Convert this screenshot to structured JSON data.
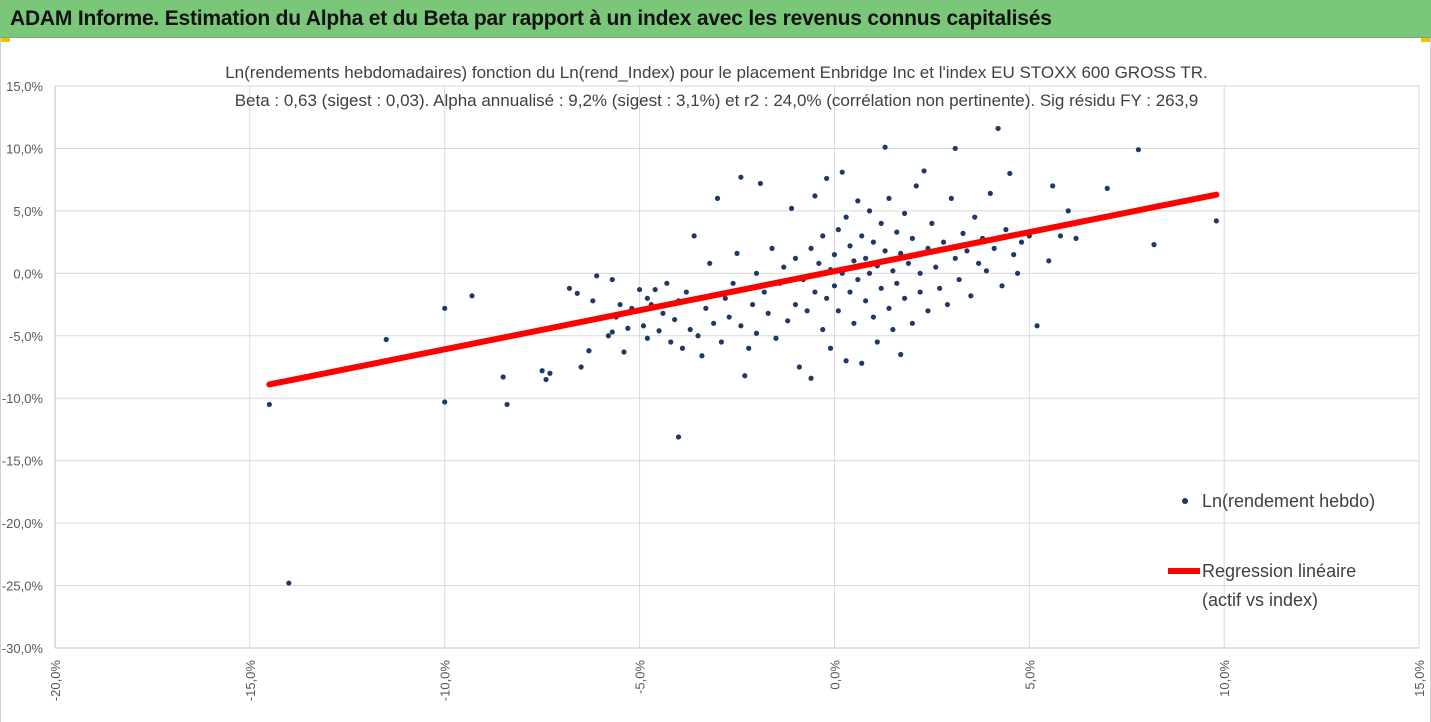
{
  "banner": {
    "title": "ADAM Informe. Estimation du Alpha et du Beta par rapport à un index avec les revenus connus capitalisés",
    "color": "#7ac77a"
  },
  "chart_data": {
    "type": "scatter",
    "title_line1": "Ln(rendements hebdomadaires) fonction du Ln(rend_Index) pour le placement Enbridge Inc et l'index EU STOXX 600 GROSS TR.",
    "title_line2": "Beta : 0,63 (sigest : 0,03). Alpha annualisé : 9,2% (sigest : 3,1%) et r2 : 24,0% (corrélation non pertinente). Sig résidu FY : 263,9",
    "xlim": [
      -0.2,
      0.15
    ],
    "ylim": [
      -0.3,
      0.15
    ],
    "x_ticks": [
      -0.2,
      -0.15,
      -0.1,
      -0.05,
      0.0,
      0.05,
      0.1,
      0.15
    ],
    "x_tick_labels": [
      "-20,0%",
      "-15,0%",
      "-10,0%",
      "-5,0%",
      "0,0%",
      "5,0%",
      "10,0%",
      "15,0%"
    ],
    "y_ticks": [
      0.15,
      0.1,
      0.05,
      0.0,
      -0.05,
      -0.1,
      -0.15,
      -0.2,
      -0.25,
      -0.3
    ],
    "y_tick_labels": [
      "15,0%",
      "10,0%",
      "5,0%",
      "0,0%",
      "-5,0%",
      "-10,0%",
      "-15,0%",
      "-20,0%",
      "-25,0%",
      "-30,0%"
    ],
    "grid": true,
    "legend_position": "right",
    "series": [
      {
        "name": "Ln(rendement hebdo)",
        "kind": "scatter",
        "color": "#203864",
        "points": [
          [
            -0.14,
            -0.248
          ],
          [
            -0.145,
            -0.105
          ],
          [
            -0.115,
            -0.053
          ],
          [
            -0.1,
            -0.103
          ],
          [
            -0.1,
            -0.028
          ],
          [
            -0.093,
            -0.018
          ],
          [
            -0.085,
            -0.083
          ],
          [
            -0.084,
            -0.105
          ],
          [
            -0.075,
            -0.078
          ],
          [
            -0.074,
            -0.085
          ],
          [
            -0.073,
            -0.08
          ],
          [
            -0.068,
            -0.012
          ],
          [
            -0.066,
            -0.016
          ],
          [
            -0.065,
            -0.075
          ],
          [
            -0.063,
            -0.062
          ],
          [
            -0.062,
            -0.022
          ],
          [
            -0.061,
            -0.002
          ],
          [
            -0.058,
            -0.05
          ],
          [
            -0.057,
            -0.047
          ],
          [
            -0.057,
            -0.005
          ],
          [
            -0.056,
            -0.035
          ],
          [
            -0.055,
            -0.025
          ],
          [
            -0.054,
            -0.063
          ],
          [
            -0.053,
            -0.044
          ],
          [
            -0.052,
            -0.028
          ],
          [
            -0.051,
            -0.03
          ],
          [
            -0.05,
            -0.013
          ],
          [
            -0.049,
            -0.042
          ],
          [
            -0.048,
            -0.02
          ],
          [
            -0.048,
            -0.052
          ],
          [
            -0.047,
            -0.025
          ],
          [
            -0.046,
            -0.013
          ],
          [
            -0.045,
            -0.046
          ],
          [
            -0.044,
            -0.032
          ],
          [
            -0.043,
            -0.008
          ],
          [
            -0.042,
            -0.055
          ],
          [
            -0.041,
            -0.037
          ],
          [
            -0.04,
            -0.131
          ],
          [
            -0.04,
            -0.022
          ],
          [
            -0.039,
            -0.06
          ],
          [
            -0.038,
            -0.015
          ],
          [
            -0.037,
            -0.045
          ],
          [
            -0.036,
            0.03
          ],
          [
            -0.035,
            -0.05
          ],
          [
            -0.034,
            -0.066
          ],
          [
            -0.033,
            -0.028
          ],
          [
            -0.032,
            0.008
          ],
          [
            -0.031,
            -0.04
          ],
          [
            -0.03,
            0.06
          ],
          [
            -0.029,
            -0.055
          ],
          [
            -0.028,
            -0.02
          ],
          [
            -0.027,
            -0.035
          ],
          [
            -0.026,
            -0.008
          ],
          [
            -0.025,
            0.016
          ],
          [
            -0.024,
            -0.042
          ],
          [
            -0.024,
            0.077
          ],
          [
            -0.023,
            -0.082
          ],
          [
            -0.022,
            -0.06
          ],
          [
            -0.021,
            -0.025
          ],
          [
            -0.02,
            0.0
          ],
          [
            -0.02,
            -0.048
          ],
          [
            -0.019,
            0.072
          ],
          [
            -0.018,
            -0.015
          ],
          [
            -0.017,
            -0.032
          ],
          [
            -0.016,
            0.02
          ],
          [
            -0.015,
            -0.052
          ],
          [
            -0.014,
            -0.008
          ],
          [
            -0.013,
            0.005
          ],
          [
            -0.012,
            -0.038
          ],
          [
            -0.011,
            0.052
          ],
          [
            -0.01,
            -0.025
          ],
          [
            -0.01,
            0.012
          ],
          [
            -0.009,
            -0.075
          ],
          [
            -0.008,
            -0.005
          ],
          [
            -0.007,
            -0.03
          ],
          [
            -0.006,
            0.02
          ],
          [
            -0.006,
            -0.084
          ],
          [
            -0.005,
            0.062
          ],
          [
            -0.005,
            -0.015
          ],
          [
            -0.004,
            0.008
          ],
          [
            -0.003,
            -0.045
          ],
          [
            -0.003,
            0.03
          ],
          [
            -0.002,
            -0.02
          ],
          [
            -0.002,
            0.076
          ],
          [
            -0.001,
            0.003
          ],
          [
            -0.001,
            -0.06
          ],
          [
            0.0,
            0.015
          ],
          [
            0.0,
            -0.01
          ],
          [
            0.001,
            0.035
          ],
          [
            0.001,
            -0.03
          ],
          [
            0.002,
            0.081
          ],
          [
            0.002,
            0.0
          ],
          [
            0.003,
            -0.07
          ],
          [
            0.003,
            0.045
          ],
          [
            0.004,
            -0.015
          ],
          [
            0.004,
            0.022
          ],
          [
            0.005,
            0.01
          ],
          [
            0.005,
            -0.04
          ],
          [
            0.006,
            0.058
          ],
          [
            0.006,
            -0.005
          ],
          [
            0.007,
            0.03
          ],
          [
            0.007,
            -0.072
          ],
          [
            0.008,
            0.012
          ],
          [
            0.008,
            -0.022
          ],
          [
            0.009,
            0.05
          ],
          [
            0.009,
            0.0
          ],
          [
            0.01,
            -0.035
          ],
          [
            0.01,
            0.025
          ],
          [
            0.011,
            0.006
          ],
          [
            0.011,
            -0.055
          ],
          [
            0.012,
            0.04
          ],
          [
            0.012,
            -0.012
          ],
          [
            0.013,
            0.101
          ],
          [
            0.013,
            0.018
          ],
          [
            0.014,
            -0.028
          ],
          [
            0.014,
            0.06
          ],
          [
            0.015,
            0.002
          ],
          [
            0.015,
            -0.045
          ],
          [
            0.016,
            0.033
          ],
          [
            0.016,
            -0.008
          ],
          [
            0.017,
            0.016
          ],
          [
            0.017,
            -0.065
          ],
          [
            0.018,
            0.048
          ],
          [
            0.018,
            -0.02
          ],
          [
            0.019,
            0.008
          ],
          [
            0.02,
            0.028
          ],
          [
            0.02,
            -0.04
          ],
          [
            0.021,
            0.07
          ],
          [
            0.022,
            0.0
          ],
          [
            0.022,
            -0.015
          ],
          [
            0.023,
            0.082
          ],
          [
            0.024,
            0.02
          ],
          [
            0.024,
            -0.03
          ],
          [
            0.025,
            0.04
          ],
          [
            0.026,
            0.005
          ],
          [
            0.027,
            -0.012
          ],
          [
            0.028,
            0.025
          ],
          [
            0.029,
            -0.025
          ],
          [
            0.03,
            0.06
          ],
          [
            0.031,
            0.012
          ],
          [
            0.031,
            0.1
          ],
          [
            0.032,
            -0.005
          ],
          [
            0.033,
            0.032
          ],
          [
            0.034,
            0.018
          ],
          [
            0.035,
            -0.018
          ],
          [
            0.036,
            0.045
          ],
          [
            0.037,
            0.008
          ],
          [
            0.038,
            0.028
          ],
          [
            0.039,
            0.002
          ],
          [
            0.04,
            0.064
          ],
          [
            0.041,
            0.02
          ],
          [
            0.042,
            0.116
          ],
          [
            0.043,
            -0.01
          ],
          [
            0.044,
            0.035
          ],
          [
            0.045,
            0.08
          ],
          [
            0.046,
            0.015
          ],
          [
            0.047,
            0.0
          ],
          [
            0.048,
            0.025
          ],
          [
            0.05,
            0.03
          ],
          [
            0.052,
            -0.042
          ],
          [
            0.055,
            0.01
          ],
          [
            0.056,
            0.07
          ],
          [
            0.058,
            0.03
          ],
          [
            0.06,
            0.05
          ],
          [
            0.062,
            0.028
          ],
          [
            0.07,
            0.068
          ],
          [
            0.078,
            0.099
          ],
          [
            0.082,
            0.023
          ],
          [
            0.098,
            0.042
          ]
        ]
      },
      {
        "name": "Regression linéaire",
        "name_line2": "(actif vs index)",
        "kind": "line",
        "color": "#ff0000",
        "points": [
          [
            -0.145,
            -0.089
          ],
          [
            0.098,
            0.063
          ]
        ]
      }
    ]
  }
}
